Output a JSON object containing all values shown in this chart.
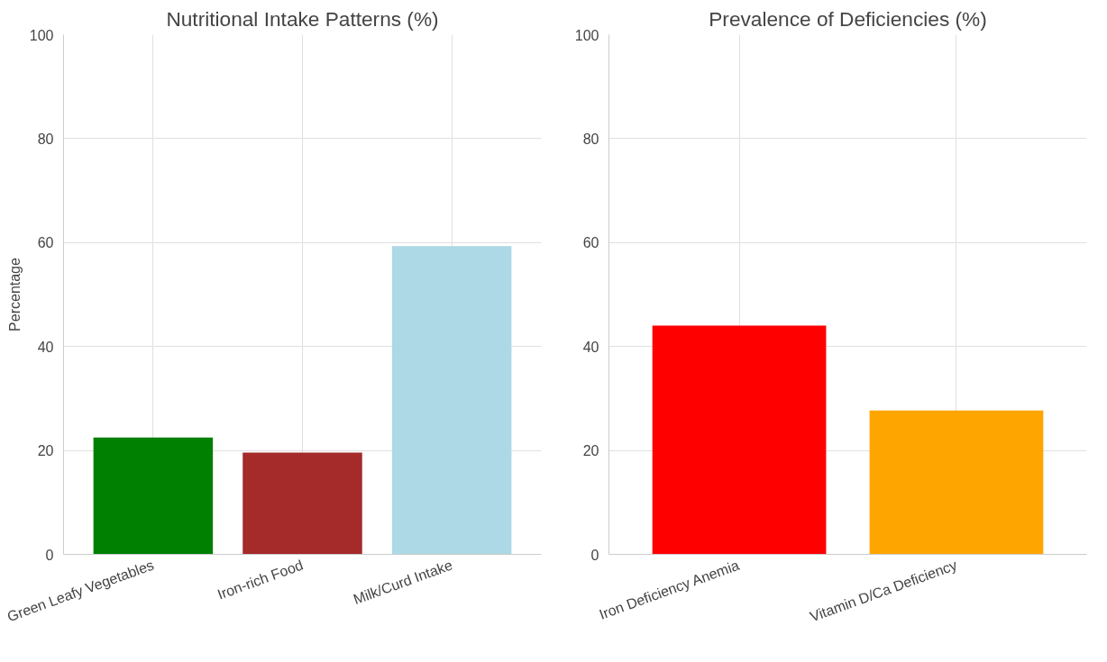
{
  "chart_data": [
    {
      "type": "bar",
      "title": "Nutritional Intake Patterns (%)",
      "ylabel": "Percentage",
      "categories": [
        "Green Leafy Vegetables",
        "Iron-rich Food",
        "Milk/Curd Intake"
      ],
      "values": [
        22.5,
        19.6,
        59.3
      ],
      "colors": [
        "#008000",
        "#a52a2a",
        "#add8e6"
      ],
      "ylim": [
        0,
        100
      ],
      "yticks": [
        0,
        20,
        40,
        60,
        80,
        100
      ],
      "grid": true
    },
    {
      "type": "bar",
      "title": "Prevalence of Deficiencies (%)",
      "categories": [
        "Iron Deficiency Anemia",
        "Vitamin D/Ca Deficiency"
      ],
      "values": [
        44.0,
        27.7
      ],
      "colors": [
        "#ff0000",
        "#ffa500"
      ],
      "ylim": [
        0,
        100
      ],
      "yticks": [
        0,
        20,
        40,
        60,
        80,
        100
      ],
      "grid": true
    }
  ]
}
